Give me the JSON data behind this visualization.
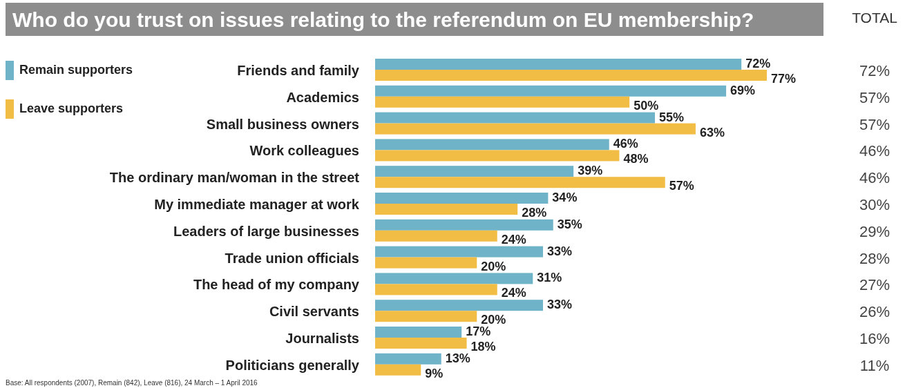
{
  "chart_data": {
    "type": "bar",
    "orientation": "horizontal",
    "title": "Who do you trust on issues relating to the referendum on EU membership?",
    "categories": [
      "Friends and family",
      "Academics",
      "Small business owners",
      "Work colleagues",
      "The ordinary man/woman in the street",
      "My immediate manager at work",
      "Leaders of large businesses",
      "Trade union officials",
      "The head of my company",
      "Civil servants",
      "Journalists",
      "Politicians generally"
    ],
    "series": [
      {
        "name": "Remain supporters",
        "color": "#6fb3c9",
        "values": [
          72,
          69,
          55,
          46,
          39,
          34,
          35,
          33,
          31,
          33,
          17,
          13
        ],
        "value_labels": [
          "72%",
          "69%",
          "55%",
          "46%",
          "39%",
          "34%",
          "35%",
          "33%",
          "31%",
          "33%",
          "17%",
          "13%"
        ]
      },
      {
        "name": "Leave supporters",
        "color": "#f2bd45",
        "values": [
          77,
          50,
          63,
          48,
          57,
          28,
          24,
          20,
          24,
          20,
          18,
          9
        ],
        "value_labels": [
          "77%",
          "50%",
          "63%",
          "48%",
          "57%",
          "28%",
          "24%",
          "20%",
          "24%",
          "20%",
          "18%",
          "9%"
        ]
      }
    ],
    "legend": "top left",
    "annotations": [
      "TOTAL",
      "72%",
      "57%",
      "57%",
      "46%",
      "46%",
      "30%",
      "29%",
      "28%",
      "27%",
      "26%",
      "16%",
      "11%",
      "Base: All respondents (2007), Remain (842), Leave (816), 24 March – 1 April 2016"
    ]
  }
}
